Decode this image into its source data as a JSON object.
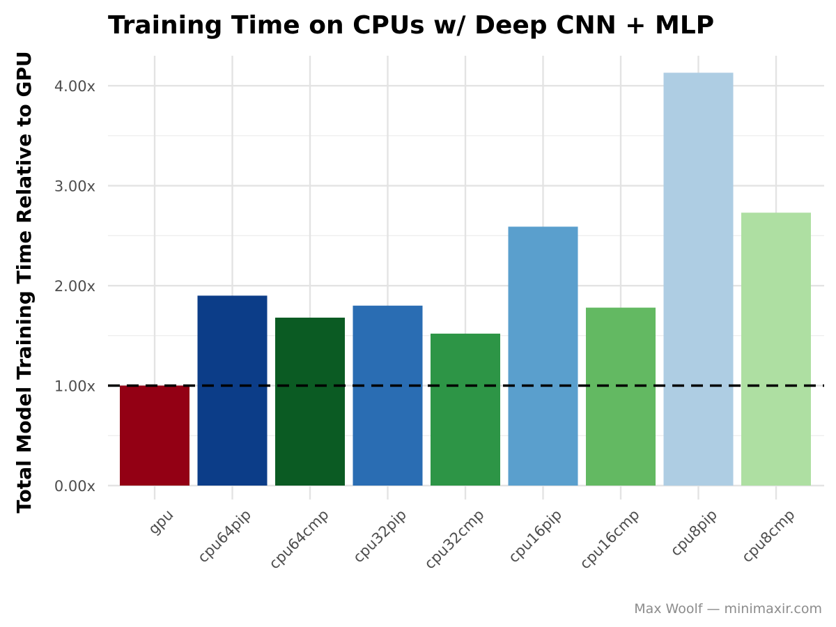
{
  "chart_data": {
    "type": "bar",
    "title": "Training Time on CPUs w/ Deep CNN + MLP",
    "xlabel": "",
    "ylabel": "Total Model Training Time Relative to GPU",
    "caption": "Max Woolf — minimaxir.com",
    "categories": [
      "gpu",
      "cpu64pip",
      "cpu64cmp",
      "cpu32pip",
      "cpu32cmp",
      "cpu16pip",
      "cpu16cmp",
      "cpu8pip",
      "cpu8cmp"
    ],
    "values": [
      1.0,
      1.9,
      1.68,
      1.8,
      1.52,
      2.59,
      1.78,
      4.13,
      2.73
    ],
    "colors": [
      "#930014",
      "#0c3d88",
      "#0b5b23",
      "#2a6db3",
      "#2d9546",
      "#5a9fcd",
      "#63b962",
      "#aecde3",
      "#aedfa2"
    ],
    "ylim": [
      0,
      4.3
    ],
    "yticks": [
      0,
      1,
      2,
      3,
      4
    ],
    "ytick_labels": [
      "0.00x",
      "1.00x",
      "2.00x",
      "3.00x",
      "4.00x"
    ],
    "reference_line": {
      "value": 1.0,
      "style": "dashed",
      "color": "#000000"
    },
    "grid": true,
    "legend": "none"
  }
}
